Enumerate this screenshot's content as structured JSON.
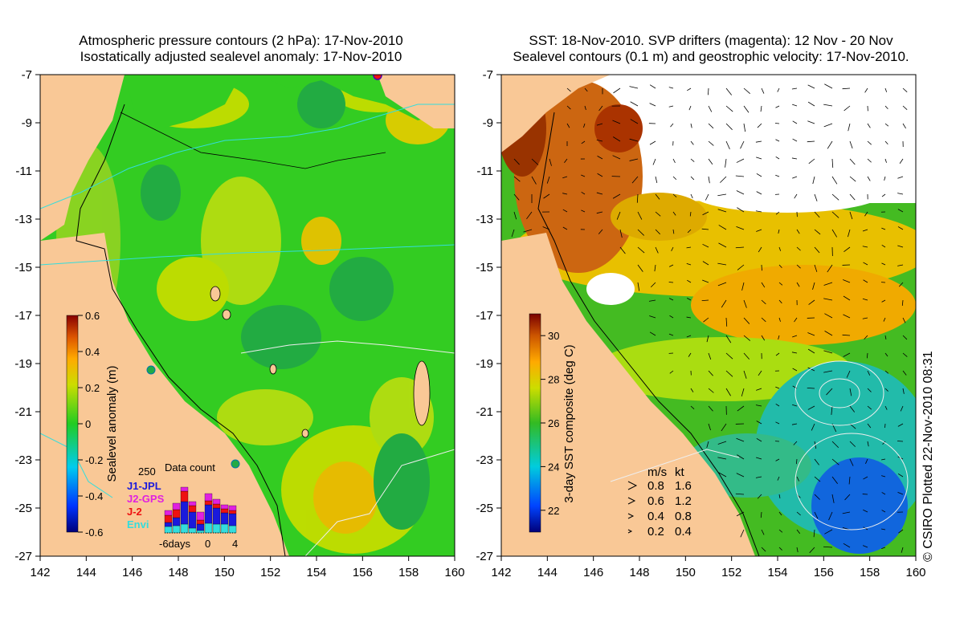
{
  "left_panel": {
    "title_line1": "Atmospheric pressure contours (2 hPa): 17-Nov-2010",
    "title_line2": "Isostatically adjusted sealevel anomaly: 17-Nov-2010",
    "lat_ticks": [
      "-7",
      "-9",
      "-11",
      "-13",
      "-15",
      "-17",
      "-19",
      "-21",
      "-23",
      "-25",
      "-27"
    ],
    "lon_ticks": [
      "142",
      "144",
      "146",
      "148",
      "150",
      "152",
      "154",
      "156",
      "158",
      "160"
    ],
    "colorbar": {
      "label": "Sealevel anomaly (m)",
      "ticks": [
        "0.6",
        "0.4",
        "0.2",
        "0",
        "-0.2",
        "-0.4",
        "-0.6"
      ],
      "range": [
        -0.6,
        0.6
      ]
    },
    "data_count": {
      "title": "Data count",
      "max_label": "250",
      "legend": [
        {
          "label": "J1-JPL",
          "color": "#1a1adc"
        },
        {
          "label": "J2-GPS",
          "color": "#e020e0"
        },
        {
          "label": "J-2",
          "color": "#ee1111"
        },
        {
          "label": "Envi",
          "color": "#33dddd"
        }
      ],
      "axis_labels": [
        "-6days",
        "0",
        "4"
      ]
    }
  },
  "right_panel": {
    "title_line1": "SST: 18-Nov-2010. SVP drifters (magenta): 12 Nov - 20 Nov",
    "title_line2": "Sealevel contours (0.1 m) and geostrophic velocity: 17-Nov-2010.",
    "lat_ticks": [
      "-7",
      "-9",
      "-11",
      "-13",
      "-15",
      "-17",
      "-19",
      "-21",
      "-23",
      "-25",
      "-27"
    ],
    "lon_ticks": [
      "142",
      "144",
      "146",
      "148",
      "150",
      "152",
      "154",
      "156",
      "158",
      "160"
    ],
    "colorbar": {
      "label": "3-day SST composite (deg C)",
      "ticks": [
        "30",
        "28",
        "26",
        "24",
        "22"
      ],
      "range": [
        21,
        31
      ]
    },
    "velocity_legend": {
      "header_ms": "m/s",
      "header_kt": "kt",
      "rows": [
        {
          "ms": "0.8",
          "kt": "1.6"
        },
        {
          "ms": "0.6",
          "kt": "1.2"
        },
        {
          "ms": "0.4",
          "kt": "0.8"
        },
        {
          "ms": "0.2",
          "kt": "0.4"
        }
      ]
    }
  },
  "credit": "© CSIRO Plotted 22-Nov-2010 08:31",
  "colors": {
    "land": "#f9c896",
    "sst_green": "#44bb22",
    "sla_green": "#33cc22"
  }
}
